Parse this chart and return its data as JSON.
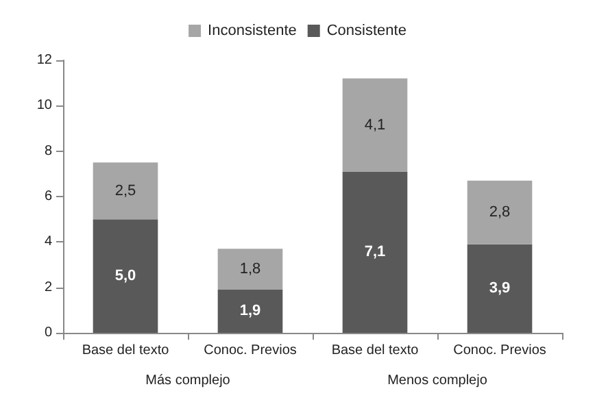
{
  "chart_data": {
    "type": "bar",
    "stacked": true,
    "categories": [
      "Base del texto",
      "Conoc. Previos",
      "Base del texto",
      "Conoc. Previos"
    ],
    "series": [
      {
        "name": "Consistente",
        "color": "#595959",
        "values": [
          5.0,
          1.9,
          7.1,
          3.9
        ],
        "value_labels": [
          "5,0",
          "1,9",
          "7,1",
          "3,9"
        ]
      },
      {
        "name": "Inconsistente",
        "color": "#a6a6a6",
        "values": [
          2.5,
          1.8,
          4.1,
          2.8
        ],
        "value_labels": [
          "2,5",
          "1,8",
          "4,1",
          "2,8"
        ]
      }
    ],
    "ylim": [
      0,
      12
    ],
    "yticks": [
      0,
      2,
      4,
      6,
      8,
      10,
      12
    ],
    "grid": false,
    "legend": "top",
    "annotations": [
      "Más complejo",
      "Menos complejo"
    ]
  }
}
